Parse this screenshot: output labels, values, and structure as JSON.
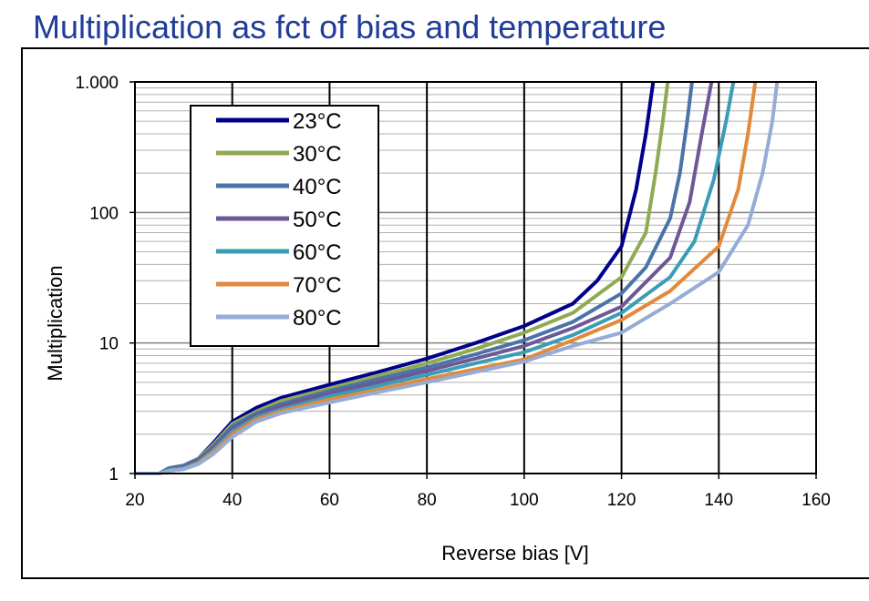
{
  "chart_data": {
    "type": "line",
    "title": "Multiplication as fct of bias and temperature",
    "xlabel": "Reverse bias [V]",
    "ylabel": "Multiplication",
    "xlim": [
      20,
      160
    ],
    "xticks": [
      20,
      40,
      60,
      80,
      100,
      120,
      140,
      160
    ],
    "ylim": [
      1,
      1000
    ],
    "yticks": [
      1,
      10,
      100,
      {
        "value": 1000,
        "label": "1.000"
      }
    ],
    "log_y": true,
    "grid": true,
    "minor_grid": true,
    "series": [
      {
        "name": "23°C",
        "color": "#00008b",
        "x": [
          20,
          25,
          27,
          30,
          33,
          36,
          40,
          45,
          50,
          60,
          70,
          80,
          90,
          100,
          110,
          115,
          120,
          123,
          125,
          126.5
        ],
        "values": [
          1,
          1,
          1.1,
          1.15,
          1.3,
          1.7,
          2.5,
          3.2,
          3.8,
          4.8,
          6,
          7.6,
          10,
          13.5,
          20,
          30,
          55,
          150,
          400,
          1000
        ]
      },
      {
        "name": "30°C",
        "color": "#8faa52",
        "x": [
          20,
          25,
          27,
          30,
          33,
          36,
          40,
          45,
          50,
          60,
          70,
          80,
          90,
          100,
          110,
          120,
          125,
          127,
          128.5,
          129.5
        ],
        "values": [
          1,
          1,
          1.1,
          1.15,
          1.3,
          1.65,
          2.4,
          3.0,
          3.6,
          4.5,
          5.6,
          7,
          9,
          12,
          17,
          32,
          70,
          200,
          500,
          1000
        ]
      },
      {
        "name": "40°C",
        "color": "#4a73a8",
        "x": [
          20,
          25,
          27,
          30,
          33,
          36,
          40,
          45,
          50,
          60,
          70,
          80,
          90,
          100,
          110,
          120,
          125,
          130,
          132,
          133.5,
          134.5
        ],
        "values": [
          1,
          1,
          1.1,
          1.15,
          1.28,
          1.6,
          2.3,
          2.9,
          3.4,
          4.3,
          5.3,
          6.5,
          8.2,
          10.5,
          14.5,
          24,
          38,
          90,
          200,
          500,
          1000
        ]
      },
      {
        "name": "50°C",
        "color": "#6e5796",
        "x": [
          20,
          25,
          27,
          30,
          33,
          36,
          40,
          45,
          50,
          60,
          70,
          80,
          90,
          100,
          110,
          120,
          130,
          134,
          136.5,
          138.5
        ],
        "values": [
          1,
          1,
          1.08,
          1.12,
          1.25,
          1.55,
          2.2,
          2.8,
          3.3,
          4.1,
          5,
          6.1,
          7.6,
          9.5,
          13,
          19,
          45,
          120,
          400,
          1000
        ]
      },
      {
        "name": "60°C",
        "color": "#3b9db5",
        "x": [
          20,
          25,
          27,
          30,
          33,
          36,
          40,
          45,
          50,
          60,
          70,
          80,
          90,
          100,
          110,
          120,
          130,
          135,
          139,
          141.5,
          143
        ],
        "values": [
          1,
          1,
          1.07,
          1.1,
          1.22,
          1.5,
          2.1,
          2.7,
          3.1,
          3.9,
          4.7,
          5.7,
          7,
          8.5,
          11.5,
          17,
          32,
          60,
          180,
          500,
          1000
        ]
      },
      {
        "name": "70°C",
        "color": "#e28a3c",
        "x": [
          25,
          27,
          30,
          33,
          36,
          40,
          45,
          50,
          60,
          70,
          80,
          90,
          100,
          110,
          120,
          130,
          140,
          144,
          146,
          147.5
        ],
        "values": [
          1,
          1.05,
          1.08,
          1.2,
          1.45,
          2.0,
          2.6,
          3.0,
          3.7,
          4.4,
          5.3,
          6.3,
          7.5,
          10.5,
          15,
          25,
          55,
          150,
          400,
          1000
        ]
      },
      {
        "name": "80°C",
        "color": "#95acd6",
        "x": [
          20,
          25,
          27,
          30,
          33,
          36,
          40,
          45,
          50,
          60,
          70,
          80,
          90,
          100,
          110,
          120,
          130,
          140,
          146,
          149,
          151,
          152
        ],
        "values": [
          1,
          1,
          1.05,
          1.08,
          1.18,
          1.4,
          1.9,
          2.5,
          2.9,
          3.5,
          4.2,
          5,
          6,
          7.2,
          9.5,
          12,
          20,
          35,
          80,
          200,
          500,
          1000
        ]
      }
    ]
  }
}
